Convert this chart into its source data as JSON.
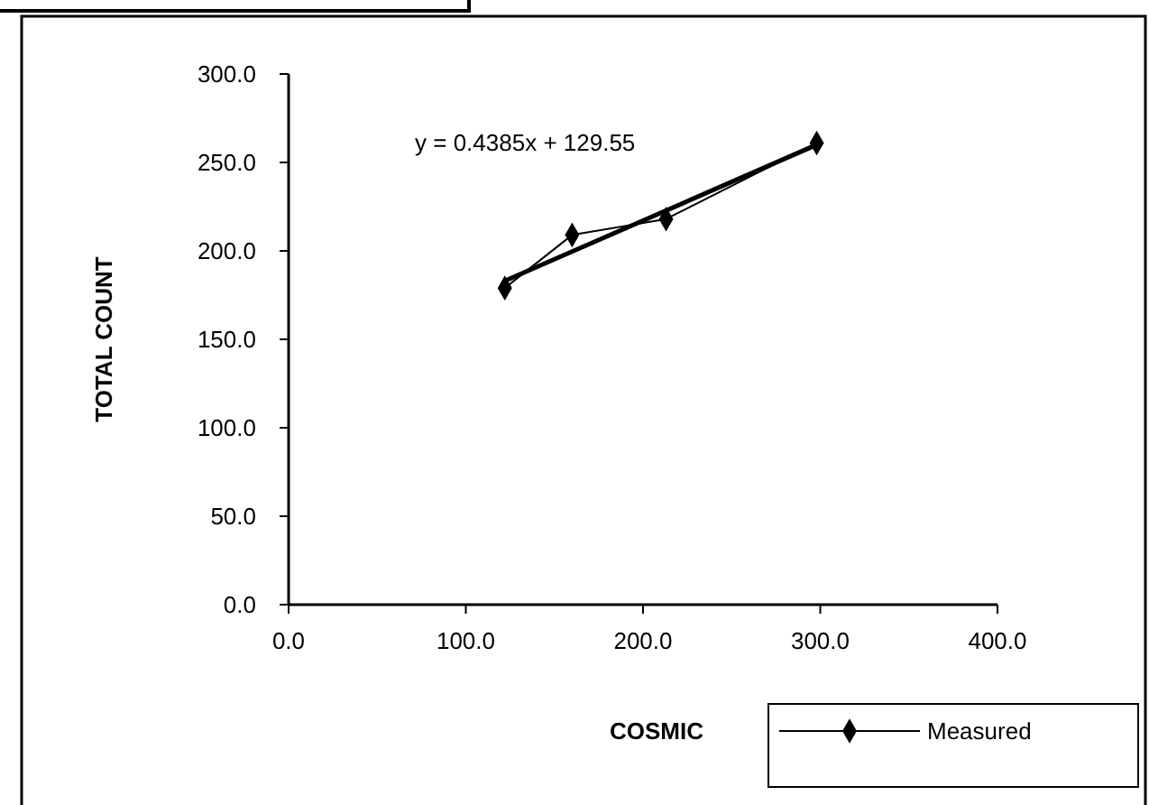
{
  "chart_data": {
    "type": "line",
    "xlabel": "COSMIC",
    "ylabel": "TOTAL COUNT",
    "xlim": [
      0,
      400
    ],
    "xticks": [
      {
        "value": 0,
        "label": "0.0"
      },
      {
        "value": 100,
        "label": "100.0"
      },
      {
        "value": 200,
        "label": "200.0"
      },
      {
        "value": 300,
        "label": "300.0"
      },
      {
        "value": 400,
        "label": "400.0"
      }
    ],
    "ylim": [
      0,
      300
    ],
    "yticks": [
      {
        "value": 0,
        "label": "0.0"
      },
      {
        "value": 50,
        "label": "50.0"
      },
      {
        "value": 100,
        "label": "100.0"
      },
      {
        "value": 150,
        "label": "150.0"
      },
      {
        "value": 200,
        "label": "200.0"
      },
      {
        "value": 250,
        "label": "250.0"
      },
      {
        "value": 300,
        "label": "300.0"
      }
    ],
    "series": [
      {
        "name": "Measured",
        "color": "#000000",
        "x": [
          122,
          160,
          213,
          298
        ],
        "values": [
          179,
          209,
          218,
          261
        ],
        "marker": "diamond",
        "line_style": "solid"
      },
      {
        "type": "line",
        "color": "#000000",
        "x": [
          122,
          298
        ],
        "values": [
          183,
          260
        ],
        "marker": "none",
        "line_style": "solid"
      }
    ],
    "annotations": [
      "y = 0.4385x + 129.55"
    ],
    "legend": "bottom right",
    "grid": false
  }
}
